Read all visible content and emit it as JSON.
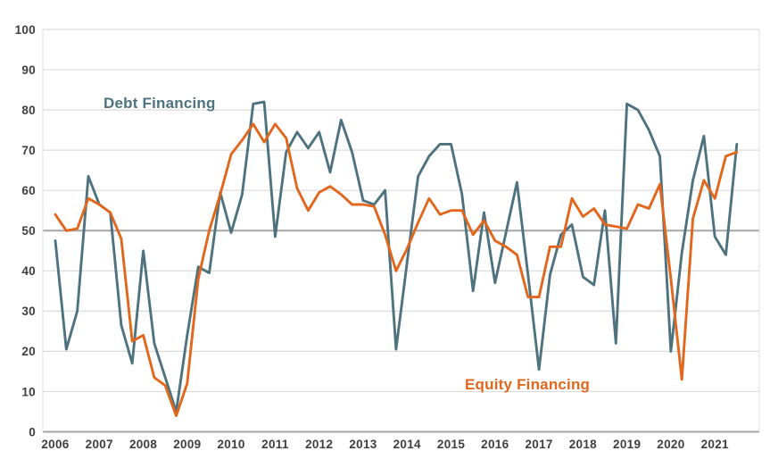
{
  "chart_data": {
    "type": "line",
    "title": "",
    "x_unit": "quarterly (4 points per year)",
    "categories_years": [
      "2006",
      "2007",
      "2008",
      "2009",
      "2010",
      "2011",
      "2012",
      "2013",
      "2014",
      "2015",
      "2016",
      "2017",
      "2018",
      "2019",
      "2020",
      "2021"
    ],
    "y_ticks": [
      0,
      10,
      20,
      30,
      40,
      50,
      60,
      70,
      80,
      90,
      100
    ],
    "ylim": [
      0,
      100
    ],
    "ytick_step": 10,
    "grid": true,
    "ref_line": 50,
    "legend_position": "inline-annotations",
    "series": [
      {
        "name": "Debt Financing",
        "color": "#4e737f",
        "values": [
          47.5,
          20.5,
          30,
          63.5,
          56.5,
          54.5,
          26.5,
          17,
          45,
          22,
          13.5,
          5,
          24,
          41,
          39.5,
          59.5,
          49.5,
          59,
          81.5,
          82,
          48.5,
          69.5,
          74.5,
          70.5,
          74.5,
          64.5,
          77.5,
          69.5,
          57.5,
          56.5,
          60,
          20.5,
          42,
          63.5,
          68.5,
          71.5,
          71.5,
          59,
          35,
          54.5,
          37,
          49.5,
          62,
          39,
          15.5,
          39,
          49,
          51.5,
          38.5,
          36.5,
          55,
          22,
          81.5,
          80,
          75,
          68.5,
          20,
          44.5,
          62.5,
          73.5,
          48.5,
          44,
          71.5
        ]
      },
      {
        "name": "Equity Financing",
        "color": "#e2671d",
        "values": [
          54,
          50,
          50.5,
          58,
          56.5,
          54.5,
          48,
          22.5,
          24,
          13.5,
          11.5,
          4,
          12,
          38,
          50,
          59,
          69,
          72.5,
          76.5,
          72,
          76.5,
          73,
          60.5,
          55,
          59.5,
          61,
          59,
          56.5,
          56.5,
          56,
          49,
          40,
          45.5,
          52,
          58,
          54,
          55,
          55,
          49,
          52.5,
          47.5,
          46,
          44,
          33.5,
          33.5,
          46,
          46,
          58,
          53.5,
          55.5,
          51.5,
          51,
          50.5,
          56.5,
          55.5,
          61.5,
          38,
          13,
          53,
          62.5,
          58,
          68.5,
          69.5
        ]
      }
    ],
    "style": {
      "gridline_color": "#dcdcdc",
      "ref_line_color": "#a6a6a6",
      "axis_line_color": "#a6a6a6",
      "plot_border_color": "#e0e0e0",
      "tick_text_color": "#3f3f3f",
      "background": "#ffffff"
    }
  }
}
